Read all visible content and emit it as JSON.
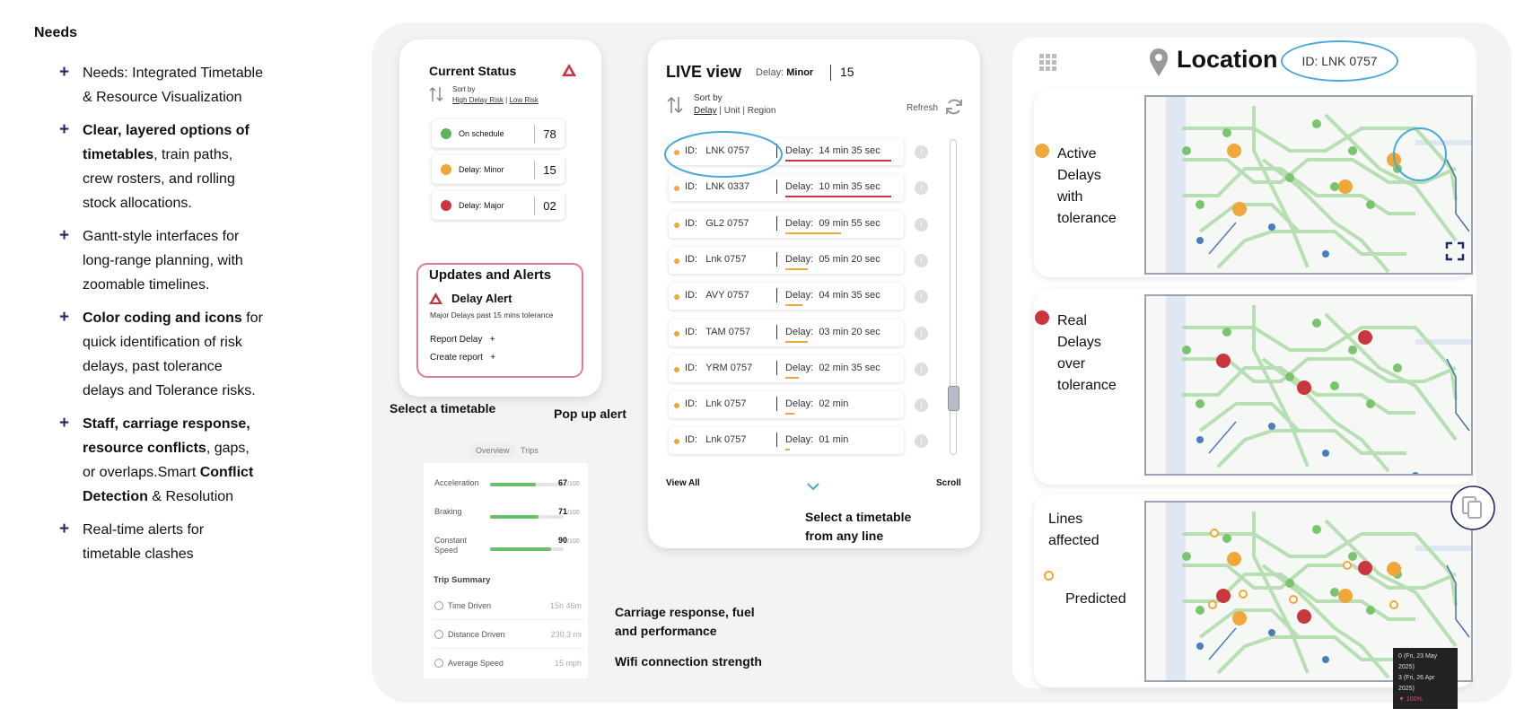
{
  "needs": {
    "title": "Needs",
    "items": [
      {
        "segments": [
          {
            "t": "Needs: Integrated Timetable & Resource Visualization",
            "b": false
          }
        ]
      },
      {
        "segments": [
          {
            "t": "Clear, layered options of timetables",
            "b": true
          },
          {
            "t": ", train paths, crew rosters, and rolling stock allocations.",
            "b": false
          }
        ]
      },
      {
        "segments": [
          {
            "t": "Gantt-style interfaces for long-range planning, with zoomable timelines.",
            "b": false
          }
        ]
      },
      {
        "segments": [
          {
            "t": "Color coding and icons",
            "b": true
          },
          {
            "t": " for quick identification of risk delays, past tolerance delays and Tolerance risks.",
            "b": false
          }
        ]
      },
      {
        "segments": [
          {
            "t": "Staff, carriage response, resource conflicts",
            "b": true
          },
          {
            "t": ", gaps, or overlaps.Smart ",
            "b": false
          },
          {
            "t": "Conflict Detection",
            "b": true
          },
          {
            "t": " & Resolution",
            "b": false
          }
        ]
      },
      {
        "segments": [
          {
            "t": "Real-time alerts for timetable clashes",
            "b": false
          }
        ]
      }
    ]
  },
  "status": {
    "title": "Current Status",
    "sort_label": "Sort by",
    "sort_opt1": "High Delay Risk",
    "sort_sep": "|",
    "sort_opt2": "Low Risk",
    "rows": [
      {
        "label": "On schedule",
        "value": "78",
        "color": "#5db55a"
      },
      {
        "label": "Delay: Minor",
        "value": "15",
        "color": "#f0a73a"
      },
      {
        "label": "Delay: Major",
        "value": "02",
        "color": "#c9363d"
      }
    ],
    "alerts_title": "Updates and Alerts",
    "alert_name": "Delay Alert",
    "alert_desc": "Major Delays past 15 mins tolerance",
    "report_delay": "Report Delay",
    "create_report": "Create report",
    "plus": "+"
  },
  "captions": {
    "select_timetable": "Select a timetable",
    "popup_alert": "Pop up alert",
    "select_any_line_1": "Select a timetable",
    "select_any_line_2": "from any line",
    "carriage_1": "Carriage response, fuel",
    "carriage_2": "and performance",
    "wifi": "Wifi connection strength"
  },
  "metrics": {
    "tabs": [
      "Overview",
      "Trips"
    ],
    "rows": [
      {
        "label": "Acceleration",
        "value": "67",
        "max": "/100",
        "pct": 0.67
      },
      {
        "label": "Braking",
        "value": "71",
        "max": "/100",
        "pct": 0.71
      },
      {
        "label": "Constant Speed",
        "value": "90",
        "max": "/100",
        "pct": 0.9
      }
    ],
    "summary_title": "Trip Summary",
    "summary": [
      {
        "label": "Time Driven",
        "value": "15h 46m"
      },
      {
        "label": "Distance Driven",
        "value": "230.3 mi"
      },
      {
        "label": "Average Speed",
        "value": "15 mph"
      }
    ]
  },
  "live": {
    "title": "LIVE view",
    "delay_label": "Delay:",
    "delay_value": "Minor",
    "count": "15",
    "sort_label": "Sort by",
    "sort_opts": [
      "Delay",
      "Unit",
      "Region"
    ],
    "sep": "|",
    "refresh": "Refresh",
    "id_label": "ID:",
    "row_delay_label": "Delay:",
    "rows": [
      {
        "id": "LNK 0757",
        "delay": "14 min  35 sec",
        "line": "#c9363d",
        "w": 0.95
      },
      {
        "id": "LNK 0337",
        "delay": "10 min  35 sec",
        "line": "#c9363d",
        "w": 0.95
      },
      {
        "id": "GL2 0757",
        "delay": "09 min  55 sec",
        "line": "#f0a73a",
        "w": 0.5
      },
      {
        "id": "Lnk 0757",
        "delay": "05 min  20 sec",
        "line": "#f0a73a",
        "w": 0.2
      },
      {
        "id": "AVY 0757",
        "delay": "04 min  35 sec",
        "line": "#f0a73a",
        "w": 0.15
      },
      {
        "id": "TAM 0757",
        "delay": "03 min  20 sec",
        "line": "#f0a73a",
        "w": 0.2
      },
      {
        "id": "YRM 0757",
        "delay": "02 min  35 sec",
        "line": "#f0a73a",
        "w": 0.12
      },
      {
        "id": "Lnk 0757",
        "delay": "02 min",
        "line": "#f0a73a",
        "w": 0.08
      },
      {
        "id": "Lnk 0757",
        "delay": "01 min",
        "line": "#f0a73a",
        "w": 0.04
      }
    ],
    "view_all": "View All",
    "scroll": "Scroll",
    "info": "i"
  },
  "location": {
    "title": "Location",
    "id_badge": "ID: LNK 0757",
    "legend1": [
      "Active",
      "Delays",
      "with",
      "tolerance"
    ],
    "legend2": [
      "Real",
      "Delays",
      "over",
      "tolerance"
    ],
    "legend3": [
      "Lines",
      "affected"
    ],
    "predicted": "Predicted",
    "tooltip": [
      "0 (Fri, 23 May 2025)",
      "3 (Fri, 26 Apr 2025)",
      "▼ 100%"
    ]
  },
  "colors": {
    "accent_blue": "#4aa8d8",
    "green": "#5db55a",
    "orange": "#f0a73a",
    "red": "#c9363d",
    "navy": "#1f2a66"
  }
}
